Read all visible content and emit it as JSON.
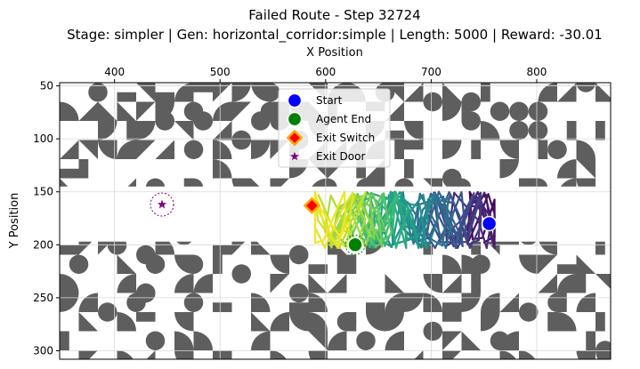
{
  "chart_data": {
    "type": "scatter",
    "title": "Failed Route - Step 32724",
    "subtitle": "Stage: simpler | Gen: horizontal_corridor:simple | Length: 5000 | Reward: -30.01",
    "xlabel": "X Position",
    "ylabel": "Y Position",
    "xlim": [
      348,
      870
    ],
    "ylim": [
      308,
      47
    ],
    "x_axis_position": "top",
    "y_inverted": true,
    "x_ticks": [
      "400",
      "500",
      "600",
      "700",
      "800"
    ],
    "y_ticks": [
      "50",
      "100",
      "150",
      "200",
      "250",
      "300"
    ],
    "grid": true,
    "legend_position": "top-center",
    "corridor": {
      "x": [
        348,
        870
      ],
      "y": [
        145,
        197
      ]
    },
    "trajectory_region": {
      "x": [
        590,
        760
      ],
      "y": [
        148,
        205
      ],
      "colormap": "viridis"
    },
    "points": [
      {
        "name": "Start",
        "x": 755,
        "y": 180,
        "color": "#0000ff",
        "marker": "circle"
      },
      {
        "name": "Agent End",
        "x": 628,
        "y": 200,
        "color": "#008000",
        "marker": "circle"
      },
      {
        "name": "Exit Switch",
        "x": 587,
        "y": 163,
        "color": "#ff0000",
        "edge": "#ffa500",
        "marker": "diamond"
      },
      {
        "name": "Exit Door",
        "x": 445,
        "y": 162,
        "color": "#800080",
        "marker": "star"
      }
    ],
    "legend": [
      "Start",
      "Agent End",
      "Exit Switch",
      "Exit Door"
    ],
    "colors": {
      "tile": "#5e5e5e",
      "grid": "#d9d9d9"
    }
  }
}
